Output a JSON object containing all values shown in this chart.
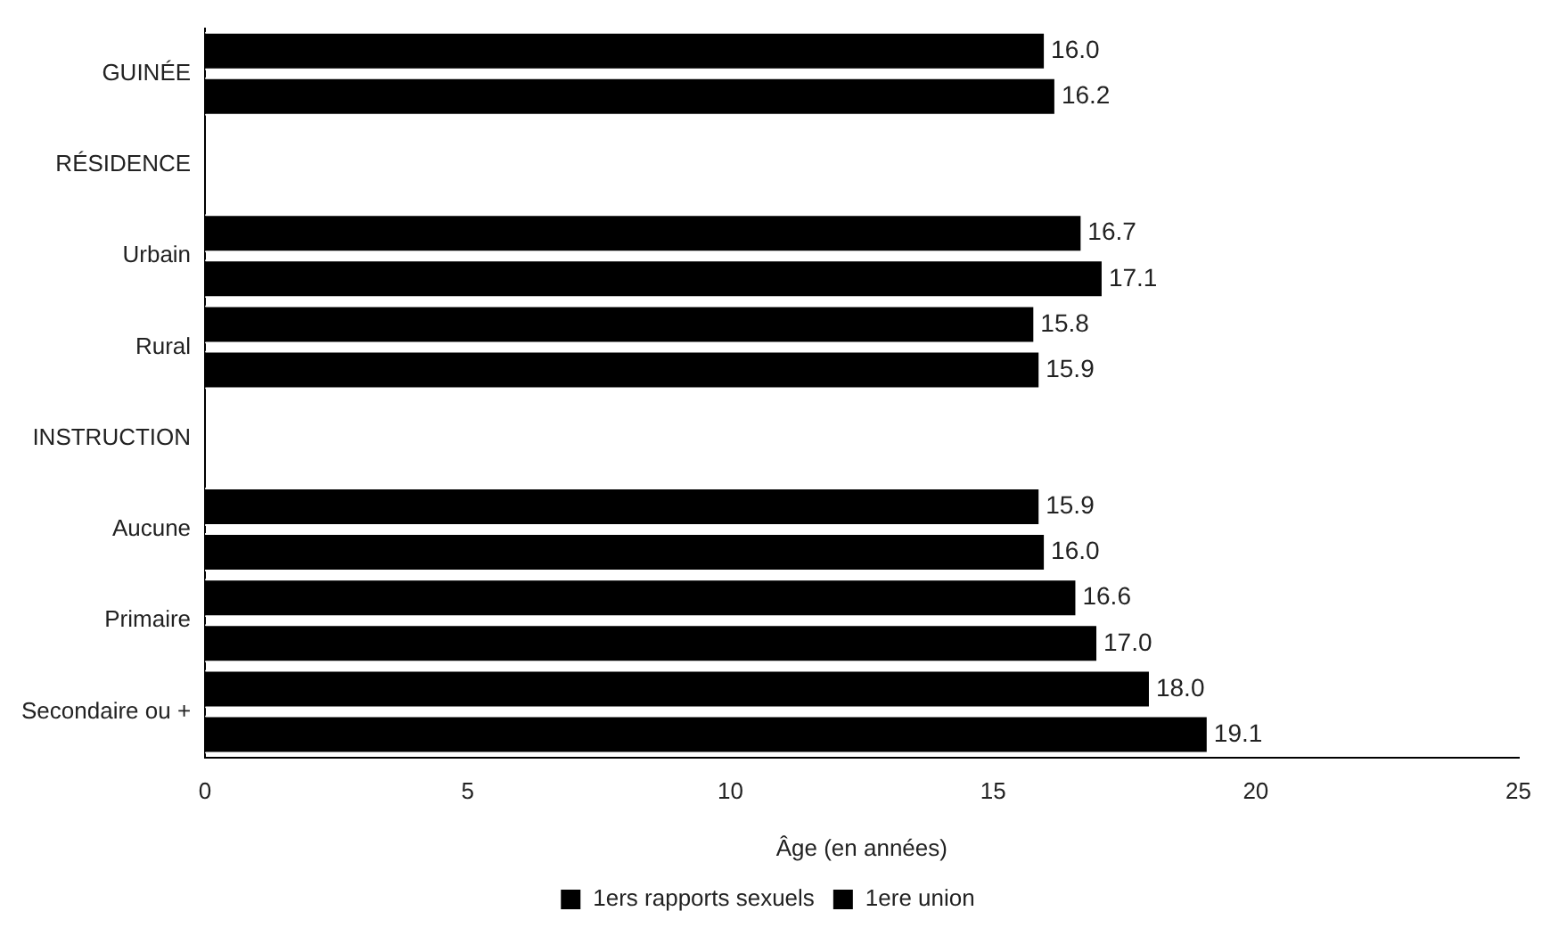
{
  "chart_data": {
    "type": "bar",
    "orientation": "horizontal",
    "xlabel": "Âge (en années)",
    "categories": [
      "GUINÉE",
      "RÉSIDENCE",
      "Urbain",
      "Rural",
      "INSTRUCTION",
      "Aucune",
      "Primaire",
      "Secondaire ou +"
    ],
    "series": [
      {
        "name": "1ers rapports sexuels",
        "color": "#000000",
        "values": [
          16.0,
          null,
          16.7,
          15.8,
          null,
          15.9,
          16.6,
          18.0
        ],
        "value_labels": [
          "16.0",
          null,
          "16.7",
          "15.8",
          null,
          "15.9",
          "16.6",
          "18.0"
        ]
      },
      {
        "name": "1ere union",
        "color": "#000000",
        "values": [
          16.2,
          null,
          17.1,
          15.9,
          null,
          16.0,
          17.0,
          19.1
        ],
        "value_labels": [
          "16.2",
          null,
          "17.1",
          "15.9",
          null,
          "16.0",
          "17.0",
          "19.1"
        ]
      }
    ],
    "xlim": [
      0,
      25
    ],
    "xticks": [
      0,
      5,
      10,
      15,
      20,
      25
    ],
    "grid": false,
    "legend": "bottom"
  }
}
